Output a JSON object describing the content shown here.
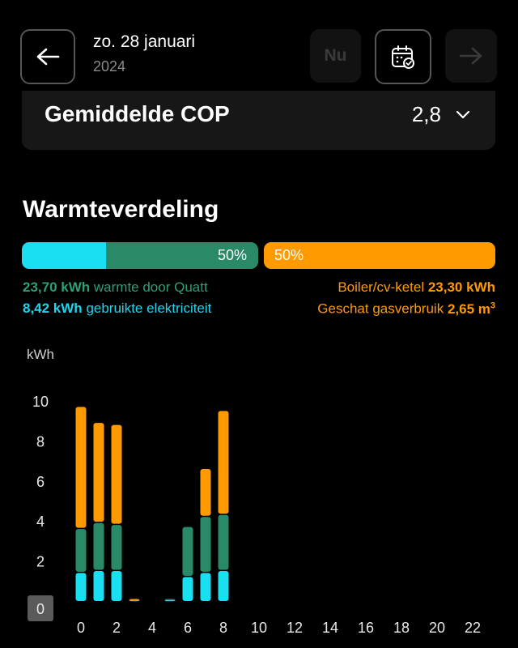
{
  "header": {
    "date": "zo. 28 januari",
    "year": "2024",
    "now_label": "Nu",
    "back_icon": "arrow-left-icon",
    "calendar_icon": "calendar-check-icon",
    "next_icon": "arrow-right-icon"
  },
  "cop": {
    "label": "Gemiddelde COP",
    "value": "2,8"
  },
  "distribution": {
    "title": "Warmteverdeling",
    "bar": {
      "heat_pct_label": "50%",
      "gas_pct_label": "50%",
      "electricity_fraction": 0.18,
      "heat_fraction": 0.32,
      "gas_fraction": 0.5
    },
    "heat": {
      "value": "23,70 kWh",
      "text": "warmte door Quatt"
    },
    "electricity": {
      "value": "8,42 kWh",
      "text": "gebruikte elektriciteit"
    },
    "boiler": {
      "text": "Boiler/cv-ketel",
      "value": "23,30 kWh"
    },
    "gas": {
      "text": "Geschat gasverbruik",
      "value": "2,65 m",
      "unit_sup": "3"
    }
  },
  "colors": {
    "electricity": "#19dff0",
    "heat": "#2a8a68",
    "gas": "#ff9a00",
    "zero_badge": "#5a5a5a"
  },
  "chart_data": {
    "type": "bar",
    "stacked": true,
    "ylabel": "kWh",
    "ylim": [
      0,
      10
    ],
    "yticks": [
      "0",
      "2",
      "4",
      "6",
      "8",
      "10"
    ],
    "xticks": [
      "0",
      "2",
      "4",
      "6",
      "8",
      "10",
      "12",
      "14",
      "16",
      "18",
      "20",
      "22"
    ],
    "categories": [
      0,
      1,
      2,
      3,
      4,
      5,
      6,
      7,
      8,
      9,
      10,
      11,
      12,
      13,
      14,
      15,
      16,
      17,
      18,
      19,
      20,
      21,
      22,
      23
    ],
    "series": [
      {
        "values": [
          1.4,
          1.5,
          1.5,
          0.05,
          0,
          0.05,
          1.2,
          1.4,
          1.5,
          0,
          0,
          0,
          0,
          0,
          0,
          0,
          0,
          0,
          0,
          0,
          0,
          0,
          0,
          0
        ]
      },
      {
        "values": [
          2.2,
          2.4,
          2.3,
          0,
          0,
          0.05,
          2.5,
          2.8,
          2.8,
          0,
          0,
          0,
          0,
          0,
          0,
          0,
          0,
          0,
          0,
          0,
          0,
          0,
          0,
          0
        ]
      },
      {
        "values": [
          6.1,
          5.0,
          5.0,
          0.05,
          0,
          0,
          0,
          2.4,
          5.2,
          0,
          0,
          0,
          0,
          0,
          0,
          0,
          0,
          0,
          0,
          0,
          0,
          0,
          0,
          0
        ]
      }
    ],
    "grid": false
  }
}
